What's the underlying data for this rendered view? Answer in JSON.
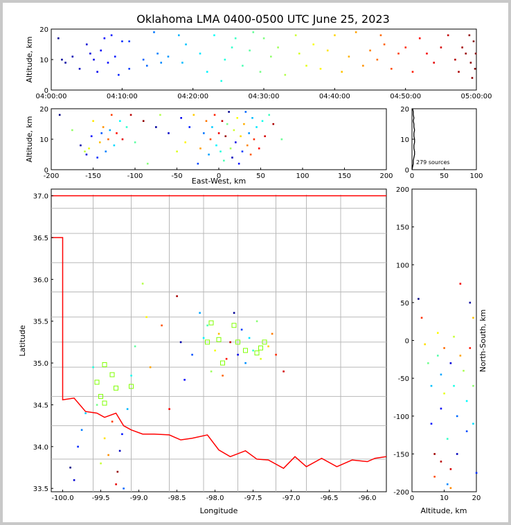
{
  "title": "Oklahoma LMA 0400-0500 UTC June 25, 2023",
  "source_count_label": "279 sources",
  "chart_data": [
    {
      "type": "scatter",
      "panel": "altitude-vs-time",
      "xlabel": "",
      "ylabel": "Altitude, km",
      "xticks": [
        "04:00:00",
        "04:10:00",
        "04:20:00",
        "04:30:00",
        "04:40:00",
        "04:50:00",
        "05:00:00"
      ],
      "xlim_minutes": [
        0,
        60
      ],
      "ylim": [
        0,
        20
      ],
      "yticks": [
        "0",
        "10",
        "20"
      ],
      "colormap": "jet (by time)",
      "points": [
        [
          1,
          17
        ],
        [
          1.5,
          10
        ],
        [
          2,
          9
        ],
        [
          3,
          11
        ],
        [
          4,
          7
        ],
        [
          5,
          15
        ],
        [
          5.5,
          12
        ],
        [
          6,
          10
        ],
        [
          6.5,
          6
        ],
        [
          7,
          13
        ],
        [
          7.5,
          17
        ],
        [
          8,
          9
        ],
        [
          8.5,
          18
        ],
        [
          9,
          11
        ],
        [
          9.5,
          5
        ],
        [
          10,
          16
        ],
        [
          11,
          7
        ],
        [
          11,
          16
        ],
        [
          13,
          10
        ],
        [
          13.5,
          8
        ],
        [
          14.5,
          19
        ],
        [
          15,
          12
        ],
        [
          15.5,
          9
        ],
        [
          16.5,
          11
        ],
        [
          18,
          18
        ],
        [
          18.5,
          9
        ],
        [
          19,
          15
        ],
        [
          21,
          12
        ],
        [
          22,
          6
        ],
        [
          23,
          18
        ],
        [
          24,
          3
        ],
        [
          24.5,
          10
        ],
        [
          25.5,
          14
        ],
        [
          26,
          17
        ],
        [
          27,
          8
        ],
        [
          28,
          13
        ],
        [
          28.5,
          19
        ],
        [
          29.5,
          6
        ],
        [
          30,
          17
        ],
        [
          31,
          11
        ],
        [
          32,
          14
        ],
        [
          33,
          5
        ],
        [
          34.5,
          18
        ],
        [
          35,
          12
        ],
        [
          36,
          8
        ],
        [
          37,
          15
        ],
        [
          38,
          7
        ],
        [
          39,
          13
        ],
        [
          40,
          18
        ],
        [
          41,
          6
        ],
        [
          42,
          11
        ],
        [
          43,
          19
        ],
        [
          44,
          8
        ],
        [
          45,
          13
        ],
        [
          46,
          10
        ],
        [
          46.5,
          18
        ],
        [
          47,
          15
        ],
        [
          48,
          7
        ],
        [
          49,
          12
        ],
        [
          50,
          14
        ],
        [
          51,
          6
        ],
        [
          52,
          17
        ],
        [
          53,
          12
        ],
        [
          54,
          9
        ],
        [
          55,
          14
        ],
        [
          56,
          18
        ],
        [
          57,
          10
        ],
        [
          57.5,
          6
        ],
        [
          58,
          14
        ],
        [
          58.5,
          12
        ],
        [
          59,
          18
        ],
        [
          59.2,
          9
        ],
        [
          59.4,
          4
        ],
        [
          59.6,
          16
        ],
        [
          59.8,
          7
        ],
        [
          59.9,
          12
        ]
      ]
    },
    {
      "type": "scatter",
      "panel": "altitude-vs-east-west",
      "xlabel": "East-West, km",
      "ylabel": "Altitude, km",
      "xticks": [
        "-200",
        "-150",
        "-100",
        "-50",
        "0",
        "50",
        "100",
        "150",
        "200"
      ],
      "xlim": [
        -200,
        200
      ],
      "ylim": [
        0,
        20
      ],
      "yticks": [
        "0",
        "10",
        "20"
      ],
      "points": [
        [
          -190,
          18
        ],
        [
          -175,
          13
        ],
        [
          -165,
          8
        ],
        [
          -160,
          6
        ],
        [
          -158,
          5
        ],
        [
          -155,
          7
        ],
        [
          -152,
          11
        ],
        [
          -150,
          16
        ],
        [
          -145,
          4
        ],
        [
          -142,
          9
        ],
        [
          -140,
          12
        ],
        [
          -138,
          14
        ],
        [
          -135,
          6
        ],
        [
          -132,
          10
        ],
        [
          -130,
          13
        ],
        [
          -128,
          18
        ],
        [
          -125,
          8
        ],
        [
          -122,
          12
        ],
        [
          -118,
          16
        ],
        [
          -115,
          10
        ],
        [
          -110,
          14
        ],
        [
          -105,
          18
        ],
        [
          -100,
          9
        ],
        [
          -90,
          16
        ],
        [
          -85,
          2
        ],
        [
          -75,
          14
        ],
        [
          -70,
          18
        ],
        [
          -60,
          12
        ],
        [
          -50,
          6
        ],
        [
          -45,
          17
        ],
        [
          -40,
          9
        ],
        [
          -35,
          14
        ],
        [
          -30,
          18
        ],
        [
          -25,
          2
        ],
        [
          -22,
          7
        ],
        [
          -18,
          12
        ],
        [
          -15,
          16
        ],
        [
          -12,
          5
        ],
        [
          -10,
          10
        ],
        [
          -8,
          14
        ],
        [
          -5,
          18
        ],
        [
          -3,
          8
        ],
        [
          0,
          12
        ],
        [
          2,
          6
        ],
        [
          4,
          16
        ],
        [
          6,
          3
        ],
        [
          8,
          11
        ],
        [
          10,
          15
        ],
        [
          12,
          19
        ],
        [
          14,
          7
        ],
        [
          16,
          4
        ],
        [
          18,
          13
        ],
        [
          20,
          9
        ],
        [
          22,
          17
        ],
        [
          24,
          2
        ],
        [
          26,
          11
        ],
        [
          28,
          6
        ],
        [
          30,
          15
        ],
        [
          32,
          19
        ],
        [
          34,
          8
        ],
        [
          36,
          12
        ],
        [
          38,
          5
        ],
        [
          40,
          17
        ],
        [
          42,
          10
        ],
        [
          45,
          14
        ],
        [
          48,
          7
        ],
        [
          52,
          16
        ],
        [
          55,
          11
        ],
        [
          60,
          18
        ],
        [
          65,
          15
        ],
        [
          75,
          10
        ]
      ]
    },
    {
      "type": "histogram",
      "panel": "altitude-distribution",
      "xticks": [
        "0",
        "50",
        "100"
      ],
      "xlim": [
        0,
        100
      ],
      "yticks": [
        "0",
        "10",
        "20"
      ],
      "ylim": [
        0,
        20
      ],
      "counts_by_altitude_km": [
        [
          1,
          1
        ],
        [
          2,
          2
        ],
        [
          3,
          2
        ],
        [
          4,
          3
        ],
        [
          5,
          4
        ],
        [
          6,
          4
        ],
        [
          7,
          3
        ],
        [
          8,
          3
        ],
        [
          9,
          4
        ],
        [
          10,
          4
        ],
        [
          11,
          3
        ],
        [
          12,
          3
        ],
        [
          13,
          4
        ],
        [
          14,
          3
        ],
        [
          15,
          3
        ],
        [
          16,
          2
        ],
        [
          17,
          3
        ],
        [
          18,
          2
        ],
        [
          19,
          2
        ],
        [
          20,
          1
        ]
      ]
    },
    {
      "type": "scatter",
      "panel": "plan-view-map",
      "xlabel": "Longitude",
      "ylabel": "Latitude",
      "xticks": [
        "-100.0",
        "-99.5",
        "-99.0",
        "-98.5",
        "-98.0",
        "-97.5",
        "-97.0",
        "-96.5",
        "-96.0"
      ],
      "xlim": [
        -100.15,
        -95.75
      ],
      "yticks": [
        "33.5",
        "34.0",
        "34.5",
        "35.0",
        "35.5",
        "36.0",
        "36.5",
        "37.0"
      ],
      "ylim": [
        33.46,
        37.08
      ],
      "stations": [
        [
          -98.05,
          35.48
        ],
        [
          -98.1,
          35.25
        ],
        [
          -97.95,
          35.28
        ],
        [
          -97.9,
          35.0
        ],
        [
          -97.75,
          35.45
        ],
        [
          -97.7,
          35.25
        ],
        [
          -97.6,
          35.15
        ],
        [
          -97.45,
          35.12
        ],
        [
          -97.35,
          35.25
        ],
        [
          -97.4,
          35.18
        ],
        [
          -99.45,
          34.98
        ],
        [
          -99.55,
          34.77
        ],
        [
          -99.35,
          34.86
        ],
        [
          -99.3,
          34.7
        ],
        [
          -99.1,
          34.72
        ],
        [
          -99.5,
          34.6
        ],
        [
          -99.45,
          34.52
        ]
      ],
      "points": [
        [
          -99.9,
          33.75
        ],
        [
          -99.85,
          33.6
        ],
        [
          -99.8,
          34.0
        ],
        [
          -99.75,
          34.2
        ],
        [
          -99.7,
          34.4
        ],
        [
          -99.6,
          34.95
        ],
        [
          -99.55,
          34.5
        ],
        [
          -99.5,
          33.8
        ],
        [
          -99.45,
          34.1
        ],
        [
          -99.4,
          33.9
        ],
        [
          -99.35,
          34.3
        ],
        [
          -99.3,
          33.55
        ],
        [
          -99.28,
          33.7
        ],
        [
          -99.25,
          33.95
        ],
        [
          -99.22,
          34.15
        ],
        [
          -99.2,
          33.5
        ],
        [
          -99.15,
          34.45
        ],
        [
          -99.1,
          34.85
        ],
        [
          -99.05,
          35.2
        ],
        [
          -98.95,
          35.95
        ],
        [
          -98.9,
          35.55
        ],
        [
          -98.85,
          34.95
        ],
        [
          -98.7,
          35.45
        ],
        [
          -98.6,
          34.45
        ],
        [
          -98.5,
          35.8
        ],
        [
          -98.45,
          35.25
        ],
        [
          -98.4,
          34.8
        ],
        [
          -98.3,
          35.1
        ],
        [
          -98.2,
          35.6
        ],
        [
          -98.15,
          35.3
        ],
        [
          -98.1,
          35.45
        ],
        [
          -98.05,
          34.9
        ],
        [
          -98.0,
          35.15
        ],
        [
          -97.95,
          35.35
        ],
        [
          -97.9,
          34.85
        ],
        [
          -97.85,
          35.05
        ],
        [
          -97.8,
          35.25
        ],
        [
          -97.75,
          35.6
        ],
        [
          -97.7,
          35.1
        ],
        [
          -97.65,
          35.4
        ],
        [
          -97.6,
          35.0
        ],
        [
          -97.55,
          35.3
        ],
        [
          -97.5,
          35.15
        ],
        [
          -97.45,
          35.5
        ],
        [
          -97.4,
          35.05
        ],
        [
          -97.3,
          35.2
        ],
        [
          -97.25,
          35.35
        ],
        [
          -97.2,
          35.1
        ],
        [
          -97.1,
          34.9
        ]
      ],
      "xlim_inset_labels": "",
      "ylim_note": ""
    },
    {
      "type": "scatter",
      "panel": "north-south-vs-altitude",
      "xlabel": "Altitude, km",
      "ylabel": "North-South, km",
      "xticks": [
        "0",
        "10",
        "20"
      ],
      "xlim": [
        0,
        20
      ],
      "yticks": [
        "-200",
        "-150",
        "-100",
        "-50",
        "0",
        "50",
        "100",
        "150",
        "200"
      ],
      "ylim": [
        -200,
        200
      ],
      "points": [
        [
          2,
          55
        ],
        [
          3,
          30
        ],
        [
          4,
          -5
        ],
        [
          5,
          -30
        ],
        [
          6,
          -60
        ],
        [
          6,
          -110
        ],
        [
          7,
          -150
        ],
        [
          7,
          -180
        ],
        [
          8,
          10
        ],
        [
          8,
          -20
        ],
        [
          9,
          -45
        ],
        [
          9,
          -90
        ],
        [
          9,
          -160
        ],
        [
          10,
          -10
        ],
        [
          10,
          -70
        ],
        [
          11,
          -130
        ],
        [
          11,
          -190
        ],
        [
          12,
          -30
        ],
        [
          12,
          -170
        ],
        [
          12,
          -195
        ],
        [
          13,
          5
        ],
        [
          13,
          -60
        ],
        [
          14,
          -100
        ],
        [
          14,
          -150
        ],
        [
          15,
          75
        ],
        [
          15,
          -20
        ],
        [
          16,
          -40
        ],
        [
          17,
          -80
        ],
        [
          17,
          -120
        ],
        [
          18,
          50
        ],
        [
          18,
          -10
        ],
        [
          19,
          30
        ],
        [
          19,
          -60
        ],
        [
          19,
          -110
        ],
        [
          20,
          -175
        ]
      ]
    }
  ]
}
